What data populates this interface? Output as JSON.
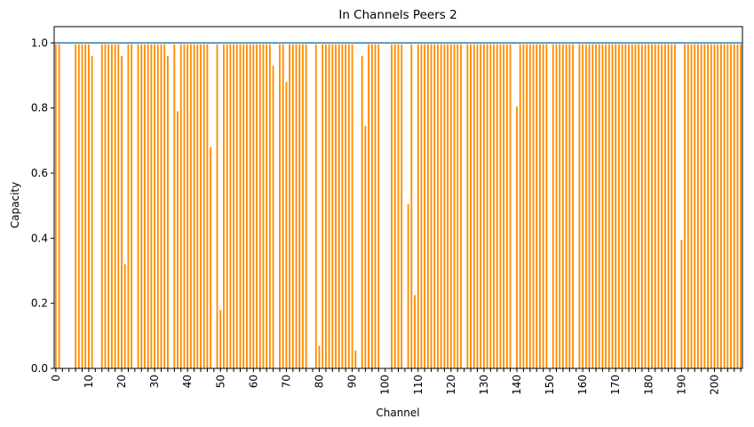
{
  "chart_data": {
    "type": "bar",
    "title": "In Channels Peers 2",
    "xlabel": "Channel",
    "ylabel": "Capacity",
    "x_count": 209,
    "xtick_labels": [
      "0",
      "10",
      "20",
      "30",
      "40",
      "50",
      "60",
      "70",
      "80",
      "90",
      "100",
      "110",
      "120",
      "130",
      "140",
      "150",
      "160",
      "170",
      "180",
      "190",
      "200"
    ],
    "xtick_every": 2,
    "yticks": [
      "0.0",
      "0.2",
      "0.4",
      "0.6",
      "0.8",
      "1.0"
    ],
    "ylim": [
      0,
      1.05
    ],
    "reference_line": 1.0,
    "grid": false,
    "bar_color": "#ff8c00",
    "line_color": "#1f77b4",
    "zero_indices": [
      2,
      3,
      4,
      5,
      12,
      13,
      24,
      35,
      48,
      67,
      77,
      78,
      92,
      99,
      100,
      101,
      106,
      124,
      139,
      150,
      158,
      189
    ],
    "special_values": {
      "11": 0.96,
      "20": 0.96,
      "21": 0.32,
      "34": 0.96,
      "37": 0.79,
      "47": 0.68,
      "50": 0.18,
      "66": 0.93,
      "70": 0.88,
      "80": 0.07,
      "91": 0.055,
      "93": 0.96,
      "94": 0.745,
      "107": 0.505,
      "109": 0.225,
      "140": 0.805,
      "190": 0.395
    },
    "default_value": 0.995
  }
}
